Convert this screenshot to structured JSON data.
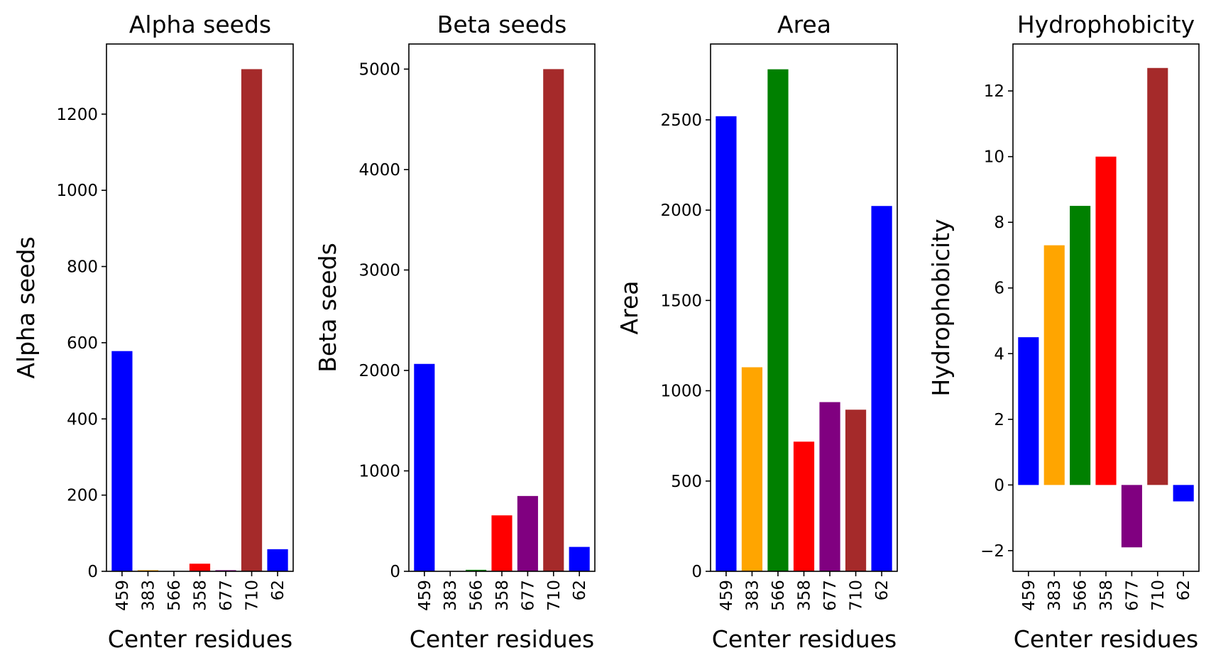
{
  "figure": {
    "x_label": "Center residues"
  },
  "chart_data": [
    {
      "type": "bar",
      "title": "Alpha seeds",
      "xlabel": "Center residues",
      "ylabel": "Alpha seeds",
      "categories": [
        "459",
        "383",
        "566",
        "358",
        "677",
        "710",
        "62"
      ],
      "values": [
        578,
        3,
        1,
        20,
        3,
        1318,
        58
      ],
      "colors": [
        "#0000ff",
        "#ffa500",
        "#008000",
        "#ff0000",
        "#800080",
        "#a52a2a",
        "#0000ff"
      ],
      "yticks": [
        0,
        200,
        400,
        600,
        800,
        1000,
        1200
      ],
      "ylim": [
        0,
        1384
      ],
      "grid": false
    },
    {
      "type": "bar",
      "title": "Beta seeds",
      "xlabel": "Center residues",
      "ylabel": "Beta seeds",
      "categories": [
        "459",
        "383",
        "566",
        "358",
        "677",
        "710",
        "62"
      ],
      "values": [
        2065,
        3,
        15,
        557,
        750,
        5000,
        243
      ],
      "colors": [
        "#0000ff",
        "#ffa500",
        "#008000",
        "#ff0000",
        "#800080",
        "#a52a2a",
        "#0000ff"
      ],
      "yticks": [
        0,
        1000,
        2000,
        3000,
        4000,
        5000
      ],
      "ylim": [
        0,
        5250
      ],
      "grid": false
    },
    {
      "type": "bar",
      "title": "Area",
      "xlabel": "Center residues",
      "ylabel": "Area",
      "categories": [
        "459",
        "383",
        "566",
        "358",
        "677",
        "710",
        "62"
      ],
      "values": [
        2520,
        1130,
        2780,
        718,
        937,
        895,
        2023
      ],
      "colors": [
        "#0000ff",
        "#ffa500",
        "#008000",
        "#ff0000",
        "#800080",
        "#a52a2a",
        "#0000ff"
      ],
      "yticks": [
        0,
        500,
        1000,
        1500,
        2000,
        2500
      ],
      "ylim": [
        0,
        2920
      ],
      "grid": false
    },
    {
      "type": "bar",
      "title": "Hydrophobicity",
      "xlabel": "Center residues",
      "ylabel": "Hydrophobicity",
      "categories": [
        "459",
        "383",
        "566",
        "358",
        "677",
        "710",
        "62"
      ],
      "values": [
        4.5,
        7.3,
        8.5,
        10.0,
        -1.9,
        12.7,
        -0.5
      ],
      "colors": [
        "#0000ff",
        "#ffa500",
        "#008000",
        "#ff0000",
        "#800080",
        "#a52a2a",
        "#0000ff"
      ],
      "yticks": [
        -2,
        0,
        2,
        4,
        6,
        8,
        10,
        12
      ],
      "yticklabels": [
        "−2",
        "0",
        "2",
        "4",
        "6",
        "8",
        "10",
        "12"
      ],
      "ylim": [
        -2.63,
        13.43
      ],
      "grid": false
    }
  ]
}
